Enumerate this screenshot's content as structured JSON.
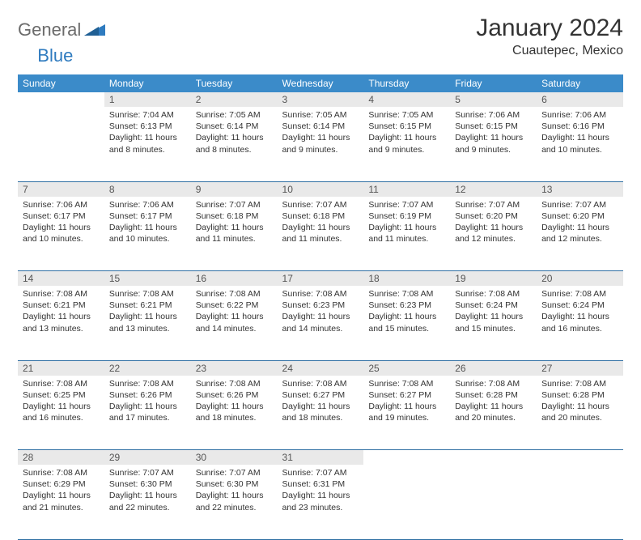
{
  "logo": {
    "general": "General",
    "blue": "Blue"
  },
  "title": "January 2024",
  "location": "Cuautepec, Mexico",
  "colors": {
    "header_bg": "#3b8bc9",
    "header_text": "#ffffff",
    "daynum_bg": "#e9e9e9",
    "daynum_text": "#555555",
    "body_text": "#333333",
    "rule": "#2f6fa3",
    "logo_gray": "#6b6b6b",
    "logo_blue": "#2f7bbf"
  },
  "weekdays": [
    "Sunday",
    "Monday",
    "Tuesday",
    "Wednesday",
    "Thursday",
    "Friday",
    "Saturday"
  ],
  "weeks": [
    [
      {
        "n": "",
        "lines": []
      },
      {
        "n": "1",
        "lines": [
          "Sunrise: 7:04 AM",
          "Sunset: 6:13 PM",
          "Daylight: 11 hours and 8 minutes."
        ]
      },
      {
        "n": "2",
        "lines": [
          "Sunrise: 7:05 AM",
          "Sunset: 6:14 PM",
          "Daylight: 11 hours and 8 minutes."
        ]
      },
      {
        "n": "3",
        "lines": [
          "Sunrise: 7:05 AM",
          "Sunset: 6:14 PM",
          "Daylight: 11 hours and 9 minutes."
        ]
      },
      {
        "n": "4",
        "lines": [
          "Sunrise: 7:05 AM",
          "Sunset: 6:15 PM",
          "Daylight: 11 hours and 9 minutes."
        ]
      },
      {
        "n": "5",
        "lines": [
          "Sunrise: 7:06 AM",
          "Sunset: 6:15 PM",
          "Daylight: 11 hours and 9 minutes."
        ]
      },
      {
        "n": "6",
        "lines": [
          "Sunrise: 7:06 AM",
          "Sunset: 6:16 PM",
          "Daylight: 11 hours and 10 minutes."
        ]
      }
    ],
    [
      {
        "n": "7",
        "lines": [
          "Sunrise: 7:06 AM",
          "Sunset: 6:17 PM",
          "Daylight: 11 hours and 10 minutes."
        ]
      },
      {
        "n": "8",
        "lines": [
          "Sunrise: 7:06 AM",
          "Sunset: 6:17 PM",
          "Daylight: 11 hours and 10 minutes."
        ]
      },
      {
        "n": "9",
        "lines": [
          "Sunrise: 7:07 AM",
          "Sunset: 6:18 PM",
          "Daylight: 11 hours and 11 minutes."
        ]
      },
      {
        "n": "10",
        "lines": [
          "Sunrise: 7:07 AM",
          "Sunset: 6:18 PM",
          "Daylight: 11 hours and 11 minutes."
        ]
      },
      {
        "n": "11",
        "lines": [
          "Sunrise: 7:07 AM",
          "Sunset: 6:19 PM",
          "Daylight: 11 hours and 11 minutes."
        ]
      },
      {
        "n": "12",
        "lines": [
          "Sunrise: 7:07 AM",
          "Sunset: 6:20 PM",
          "Daylight: 11 hours and 12 minutes."
        ]
      },
      {
        "n": "13",
        "lines": [
          "Sunrise: 7:07 AM",
          "Sunset: 6:20 PM",
          "Daylight: 11 hours and 12 minutes."
        ]
      }
    ],
    [
      {
        "n": "14",
        "lines": [
          "Sunrise: 7:08 AM",
          "Sunset: 6:21 PM",
          "Daylight: 11 hours and 13 minutes."
        ]
      },
      {
        "n": "15",
        "lines": [
          "Sunrise: 7:08 AM",
          "Sunset: 6:21 PM",
          "Daylight: 11 hours and 13 minutes."
        ]
      },
      {
        "n": "16",
        "lines": [
          "Sunrise: 7:08 AM",
          "Sunset: 6:22 PM",
          "Daylight: 11 hours and 14 minutes."
        ]
      },
      {
        "n": "17",
        "lines": [
          "Sunrise: 7:08 AM",
          "Sunset: 6:23 PM",
          "Daylight: 11 hours and 14 minutes."
        ]
      },
      {
        "n": "18",
        "lines": [
          "Sunrise: 7:08 AM",
          "Sunset: 6:23 PM",
          "Daylight: 11 hours and 15 minutes."
        ]
      },
      {
        "n": "19",
        "lines": [
          "Sunrise: 7:08 AM",
          "Sunset: 6:24 PM",
          "Daylight: 11 hours and 15 minutes."
        ]
      },
      {
        "n": "20",
        "lines": [
          "Sunrise: 7:08 AM",
          "Sunset: 6:24 PM",
          "Daylight: 11 hours and 16 minutes."
        ]
      }
    ],
    [
      {
        "n": "21",
        "lines": [
          "Sunrise: 7:08 AM",
          "Sunset: 6:25 PM",
          "Daylight: 11 hours and 16 minutes."
        ]
      },
      {
        "n": "22",
        "lines": [
          "Sunrise: 7:08 AM",
          "Sunset: 6:26 PM",
          "Daylight: 11 hours and 17 minutes."
        ]
      },
      {
        "n": "23",
        "lines": [
          "Sunrise: 7:08 AM",
          "Sunset: 6:26 PM",
          "Daylight: 11 hours and 18 minutes."
        ]
      },
      {
        "n": "24",
        "lines": [
          "Sunrise: 7:08 AM",
          "Sunset: 6:27 PM",
          "Daylight: 11 hours and 18 minutes."
        ]
      },
      {
        "n": "25",
        "lines": [
          "Sunrise: 7:08 AM",
          "Sunset: 6:27 PM",
          "Daylight: 11 hours and 19 minutes."
        ]
      },
      {
        "n": "26",
        "lines": [
          "Sunrise: 7:08 AM",
          "Sunset: 6:28 PM",
          "Daylight: 11 hours and 20 minutes."
        ]
      },
      {
        "n": "27",
        "lines": [
          "Sunrise: 7:08 AM",
          "Sunset: 6:28 PM",
          "Daylight: 11 hours and 20 minutes."
        ]
      }
    ],
    [
      {
        "n": "28",
        "lines": [
          "Sunrise: 7:08 AM",
          "Sunset: 6:29 PM",
          "Daylight: 11 hours and 21 minutes."
        ]
      },
      {
        "n": "29",
        "lines": [
          "Sunrise: 7:07 AM",
          "Sunset: 6:30 PM",
          "Daylight: 11 hours and 22 minutes."
        ]
      },
      {
        "n": "30",
        "lines": [
          "Sunrise: 7:07 AM",
          "Sunset: 6:30 PM",
          "Daylight: 11 hours and 22 minutes."
        ]
      },
      {
        "n": "31",
        "lines": [
          "Sunrise: 7:07 AM",
          "Sunset: 6:31 PM",
          "Daylight: 11 hours and 23 minutes."
        ]
      },
      {
        "n": "",
        "lines": []
      },
      {
        "n": "",
        "lines": []
      },
      {
        "n": "",
        "lines": []
      }
    ]
  ]
}
